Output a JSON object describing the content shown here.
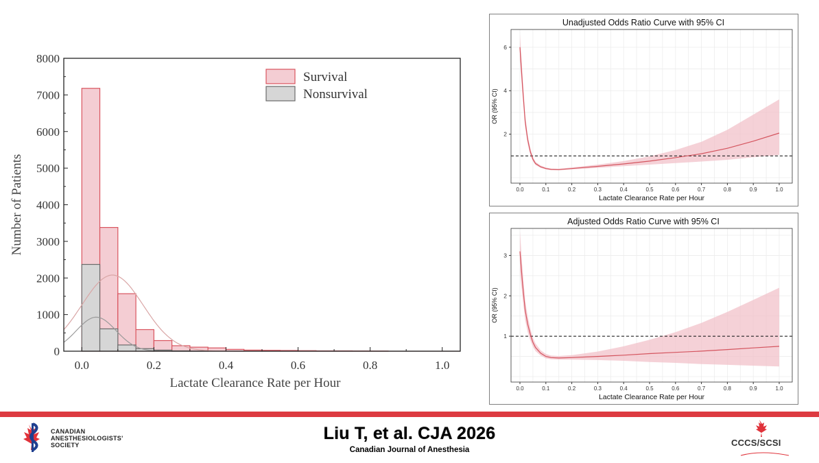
{
  "chart_data": [
    {
      "type": "bar",
      "title": "",
      "xlabel": "Lactate Clearance Rate per Hour",
      "ylabel": "Number of Patients",
      "xlim": [
        -0.05,
        1.05
      ],
      "ylim": [
        0,
        8000
      ],
      "xticks": [
        "0.0",
        "0.2",
        "0.4",
        "0.6",
        "0.8",
        "1.0"
      ],
      "yticks": [
        "0",
        "1000",
        "2000",
        "3000",
        "4000",
        "5000",
        "6000",
        "7000",
        "8000"
      ],
      "bin_width": 0.05,
      "bin_starts": [
        0.0,
        0.05,
        0.1,
        0.15,
        0.2,
        0.25,
        0.3,
        0.35,
        0.4,
        0.45,
        0.5,
        0.55,
        0.6,
        0.65,
        0.7,
        0.75,
        0.8,
        0.85,
        0.9,
        0.95
      ],
      "legend_position": "top-right",
      "series": [
        {
          "name": "Survival",
          "color": "#f4cdd3",
          "edge": "#d9545e",
          "values": [
            7180,
            3380,
            1570,
            590,
            290,
            150,
            110,
            90,
            50,
            30,
            25,
            20,
            15,
            10,
            10,
            8,
            6,
            0,
            0,
            0
          ]
        },
        {
          "name": "Nonsurvival",
          "color": "#d6d6d6",
          "edge": "#6a6a6a",
          "values": [
            2370,
            610,
            170,
            70,
            30,
            10,
            5,
            0,
            0,
            0,
            0,
            0,
            0,
            0,
            0,
            0,
            0,
            0,
            0,
            0
          ]
        }
      ],
      "fit_curves": [
        {
          "series": "Survival",
          "color": "#d9a6a6",
          "mean": 0.085,
          "sd": 0.085,
          "peak": 2080
        },
        {
          "series": "Nonsurvival",
          "color": "#9a9a9a",
          "mean": 0.04,
          "sd": 0.055,
          "peak": 930
        }
      ]
    },
    {
      "type": "line",
      "title": "Unadjusted Odds Ratio Curve with 95% CI",
      "xlabel": "Lactate Clearance Rate per Hour",
      "ylabel": "OR (95% CI)",
      "xlim": [
        0,
        1
      ],
      "ylim": [
        0,
        6.5
      ],
      "xticks": [
        "0.0",
        "0.1",
        "0.2",
        "0.3",
        "0.4",
        "0.5",
        "0.6",
        "0.7",
        "0.8",
        "0.9",
        "1.0"
      ],
      "yticks": [
        "2",
        "4",
        "6"
      ],
      "ytick_values": [
        2,
        4,
        6
      ],
      "reference_line": 1,
      "line_color": "#d4545e",
      "band_color": "#f2c2ca",
      "x": [
        0.0,
        0.01,
        0.02,
        0.03,
        0.04,
        0.05,
        0.06,
        0.08,
        0.1,
        0.12,
        0.15,
        0.2,
        0.3,
        0.4,
        0.5,
        0.6,
        0.7,
        0.8,
        0.9,
        1.0
      ],
      "y": [
        6.0,
        4.2,
        2.6,
        1.75,
        1.2,
        0.85,
        0.65,
        0.5,
        0.42,
        0.38,
        0.37,
        0.42,
        0.52,
        0.63,
        0.76,
        0.92,
        1.1,
        1.35,
        1.68,
        2.05
      ],
      "lower": [
        5.4,
        3.8,
        2.3,
        1.55,
        1.05,
        0.75,
        0.58,
        0.45,
        0.38,
        0.35,
        0.34,
        0.38,
        0.45,
        0.53,
        0.6,
        0.67,
        0.74,
        0.82,
        0.94,
        1.05
      ],
      "upper": [
        6.6,
        4.7,
        2.9,
        1.95,
        1.36,
        0.96,
        0.73,
        0.56,
        0.47,
        0.42,
        0.41,
        0.47,
        0.6,
        0.76,
        0.98,
        1.27,
        1.65,
        2.2,
        2.9,
        3.6
      ]
    },
    {
      "type": "line",
      "title": "Adjusted Odds Ratio Curve with 95% CI",
      "xlabel": "Lactate Clearance Rate per Hour",
      "ylabel": "OR (95% CI)",
      "xlim": [
        0,
        1
      ],
      "ylim": [
        0,
        3.5
      ],
      "xticks": [
        "0.0",
        "0.1",
        "0.2",
        "0.3",
        "0.4",
        "0.5",
        "0.6",
        "0.7",
        "0.8",
        "0.9",
        "1.0"
      ],
      "yticks": [
        "1",
        "2",
        "3"
      ],
      "ytick_values": [
        1,
        2,
        3
      ],
      "reference_line": 1,
      "line_color": "#d4545e",
      "band_color": "#f2c2ca",
      "x": [
        0.0,
        0.01,
        0.02,
        0.03,
        0.04,
        0.05,
        0.06,
        0.08,
        0.1,
        0.12,
        0.15,
        0.2,
        0.3,
        0.4,
        0.5,
        0.6,
        0.7,
        0.8,
        0.9,
        1.0
      ],
      "y": [
        3.1,
        2.3,
        1.65,
        1.3,
        1.05,
        0.85,
        0.72,
        0.58,
        0.5,
        0.47,
        0.46,
        0.47,
        0.5,
        0.53,
        0.57,
        0.6,
        0.63,
        0.67,
        0.71,
        0.75
      ],
      "lower": [
        2.6,
        1.95,
        1.4,
        1.1,
        0.9,
        0.74,
        0.63,
        0.52,
        0.45,
        0.43,
        0.42,
        0.42,
        0.41,
        0.39,
        0.36,
        0.34,
        0.31,
        0.29,
        0.27,
        0.25
      ],
      "upper": [
        3.6,
        2.65,
        1.9,
        1.5,
        1.2,
        0.96,
        0.82,
        0.65,
        0.56,
        0.52,
        0.51,
        0.53,
        0.62,
        0.75,
        0.91,
        1.1,
        1.33,
        1.6,
        1.9,
        2.2
      ]
    }
  ],
  "footer": {
    "citation": "Liu T, et al. CJA 2026",
    "journal": "Canadian Journal of Anesthesia",
    "left_logo_lines": [
      "CANADIAN",
      "ANESTHESIOLOGISTS'",
      "SOCIETY"
    ],
    "right_logo_text": "CCCS/SCSI",
    "accent_color": "#dd3a41"
  }
}
